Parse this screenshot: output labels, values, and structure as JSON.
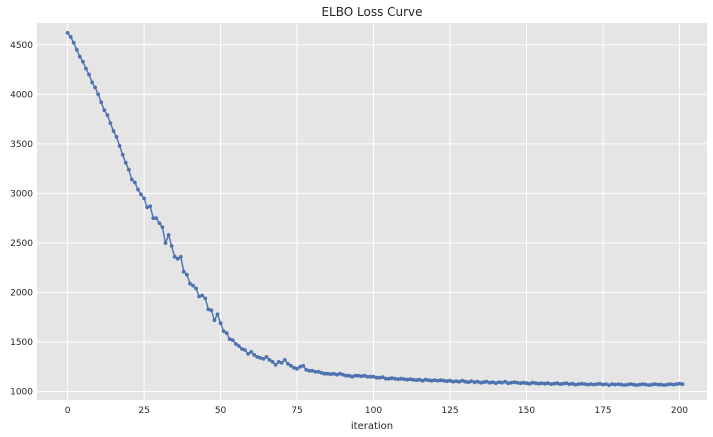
{
  "chart_data": {
    "type": "line",
    "title": "ELBO Loss Curve",
    "xlabel": "iteration",
    "ylabel": "",
    "xlim": [
      -10,
      209
    ],
    "ylim": [
      915,
      4720
    ],
    "x_ticks": [
      0,
      25,
      50,
      75,
      100,
      125,
      150,
      175,
      200
    ],
    "y_ticks": [
      1000,
      1500,
      2000,
      2500,
      3000,
      3500,
      4000,
      4500
    ],
    "grid": true,
    "background_color": "#e5e5e5",
    "grid_color": "#ffffff",
    "series": [
      {
        "color": "#4c72b0",
        "marker": "circle",
        "x_start": 0,
        "x_step": 1,
        "values": [
          4620,
          4580,
          4520,
          4450,
          4380,
          4330,
          4260,
          4200,
          4120,
          4070,
          4000,
          3920,
          3840,
          3790,
          3710,
          3630,
          3570,
          3480,
          3390,
          3310,
          3240,
          3140,
          3110,
          3040,
          2990,
          2950,
          2860,
          2870,
          2750,
          2750,
          2700,
          2660,
          2500,
          2580,
          2470,
          2360,
          2340,
          2360,
          2210,
          2180,
          2090,
          2070,
          2040,
          1960,
          1970,
          1940,
          1830,
          1820,
          1720,
          1780,
          1690,
          1610,
          1590,
          1530,
          1520,
          1480,
          1460,
          1430,
          1420,
          1380,
          1400,
          1370,
          1350,
          1340,
          1330,
          1350,
          1320,
          1300,
          1270,
          1300,
          1290,
          1320,
          1280,
          1260,
          1240,
          1230,
          1250,
          1260,
          1220,
          1210,
          1210,
          1200,
          1200,
          1190,
          1180,
          1180,
          1175,
          1180,
          1170,
          1180,
          1170,
          1160,
          1160,
          1150,
          1160,
          1160,
          1155,
          1160,
          1150,
          1150,
          1150,
          1140,
          1140,
          1145,
          1130,
          1130,
          1135,
          1130,
          1125,
          1130,
          1125,
          1120,
          1125,
          1120,
          1115,
          1120,
          1110,
          1120,
          1115,
          1110,
          1115,
          1110,
          1115,
          1110,
          1105,
          1110,
          1100,
          1105,
          1100,
          1110,
          1100,
          1095,
          1105,
          1095,
          1100,
          1090,
          1095,
          1100,
          1090,
          1095,
          1085,
          1095,
          1090,
          1100,
          1085,
          1090,
          1095,
          1090,
          1085,
          1090,
          1085,
          1080,
          1090,
          1085,
          1080,
          1085,
          1080,
          1085,
          1075,
          1080,
          1085,
          1075,
          1080,
          1085,
          1075,
          1080,
          1070,
          1075,
          1080,
          1075,
          1070,
          1075,
          1070,
          1075,
          1080,
          1070,
          1075,
          1065,
          1075,
          1070,
          1075,
          1070,
          1065,
          1070,
          1075,
          1070,
          1065,
          1070,
          1075,
          1070,
          1065,
          1070,
          1075,
          1070,
          1070,
          1065,
          1070,
          1075,
          1070,
          1075,
          1080,
          1075
        ]
      }
    ]
  }
}
